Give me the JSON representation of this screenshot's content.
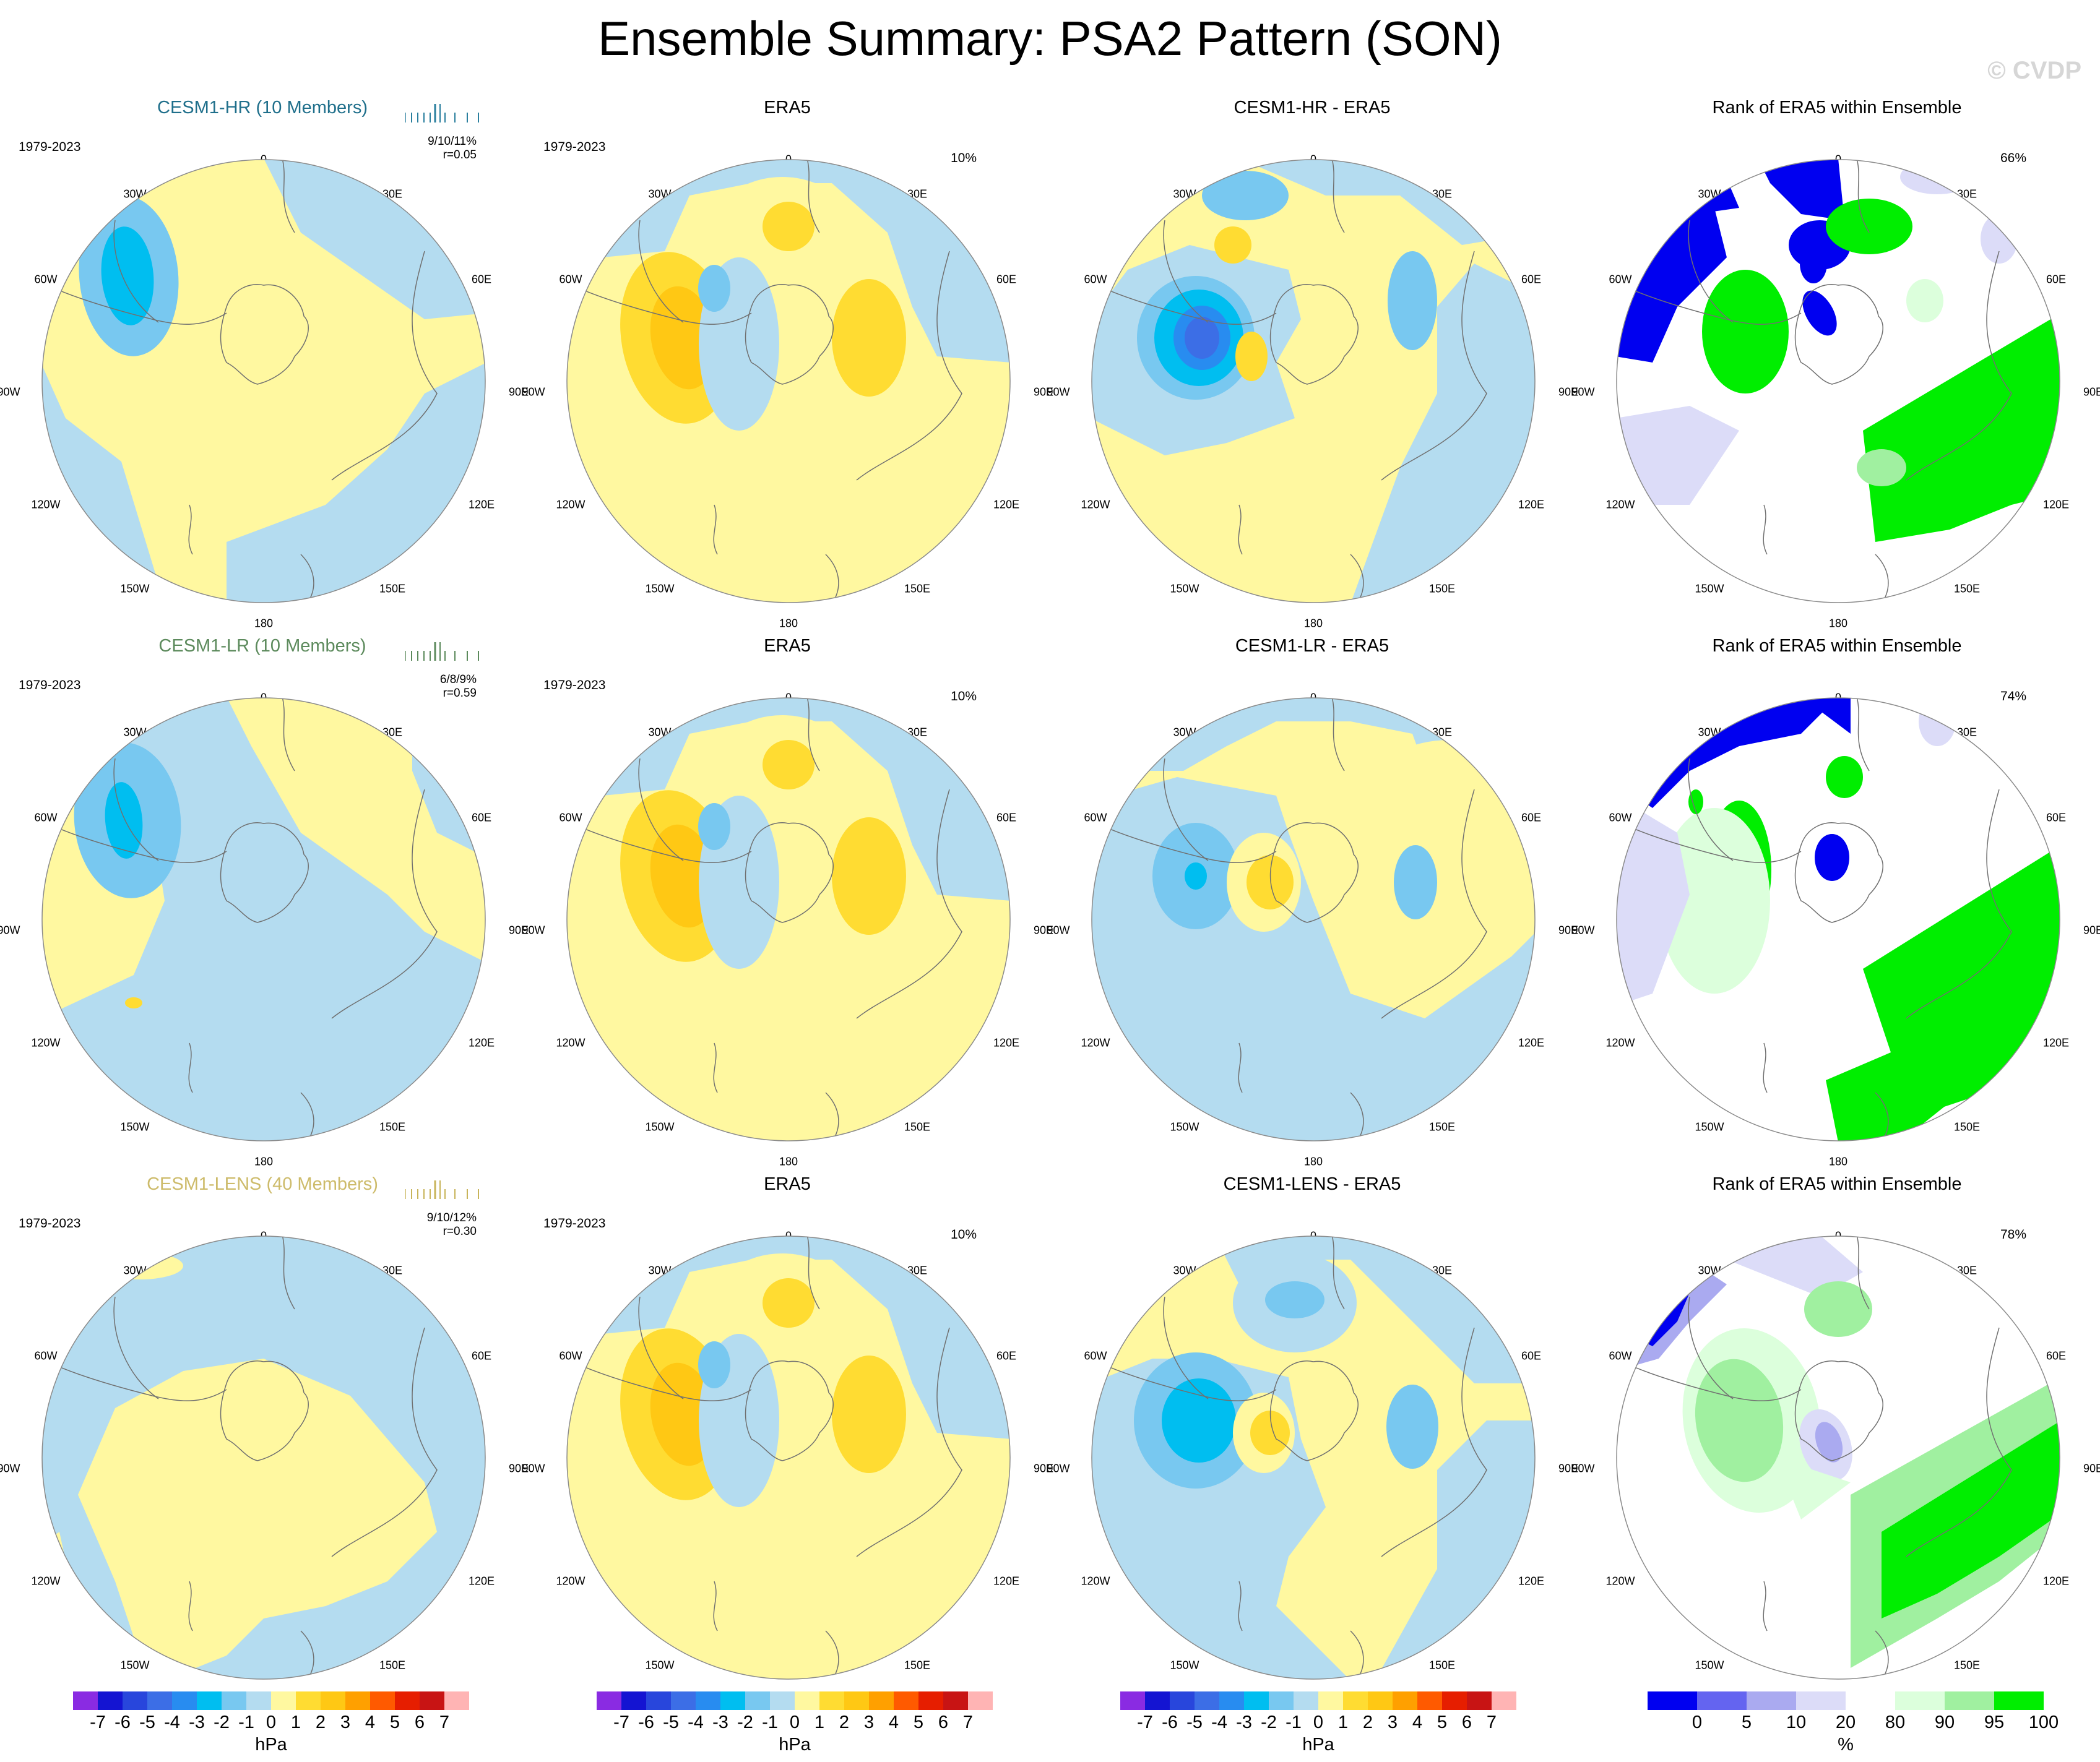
{
  "title": "Ensemble Summary: PSA2 Pattern (SON)",
  "watermark": "© CVDP",
  "period": "1979-2023",
  "lon_labels": [
    "0",
    "30E",
    "60E",
    "90E",
    "120E",
    "150E",
    "180",
    "150W",
    "120W",
    "90W",
    "60W",
    "30W"
  ],
  "rows": [
    {
      "model": {
        "title": "CESM1-HR (10 Members)",
        "title_color": "#1f6f8b",
        "tick_color": "#2a7f9e",
        "stats_line1": "9/10/11%",
        "stats_line2": "r=0.05"
      },
      "obs": {
        "title": "ERA5",
        "pct": "10%"
      },
      "diff": {
        "title": "CESM1-HR - ERA5"
      },
      "rank": {
        "title": "Rank of ERA5 within Ensemble",
        "pct": "66%"
      }
    },
    {
      "model": {
        "title": "CESM1-LR (10 Members)",
        "title_color": "#5c8a5c",
        "tick_color": "#5c8a5c",
        "stats_line1": "6/8/9%",
        "stats_line2": "r=0.59"
      },
      "obs": {
        "title": "ERA5",
        "pct": "10%"
      },
      "diff": {
        "title": "CESM1-LR - ERA5"
      },
      "rank": {
        "title": "Rank of ERA5 within Ensemble",
        "pct": "74%"
      }
    },
    {
      "model": {
        "title": "CESM1-LENS (40 Members)",
        "title_color": "#cdbb6a",
        "tick_color": "#c8b45a",
        "stats_line1": "9/10/12%",
        "stats_line2": "r=0.30"
      },
      "obs": {
        "title": "ERA5",
        "pct": "10%"
      },
      "diff": {
        "title": "CESM1-LENS - ERA5"
      },
      "rank": {
        "title": "Rank of ERA5 within Ensemble",
        "pct": "78%"
      }
    }
  ],
  "colorbar_hpa": {
    "labels": [
      "-7",
      "-6",
      "-5",
      "-4",
      "-3",
      "-2",
      "-1",
      "0",
      "1",
      "2",
      "3",
      "4",
      "5",
      "6",
      "7"
    ],
    "colors": [
      "#8a2be2",
      "#1414d2",
      "#2846dc",
      "#3c6ee6",
      "#288cf0",
      "#00bef0",
      "#78c8f0",
      "#b4dcf0",
      "#fff8a0",
      "#ffdc32",
      "#ffc814",
      "#ffa000",
      "#ff5a00",
      "#e61e00",
      "#c81414",
      "#ffb4b4"
    ],
    "unit": "hPa"
  },
  "colorbar_rank": {
    "labels": [
      "0",
      "5",
      "10",
      "20",
      "80",
      "90",
      "95",
      "100"
    ],
    "colors": [
      "#0000f0",
      "#6464f0",
      "#aaaaf0",
      "#dcdcf8",
      "#ffffff",
      "#dcffdc",
      "#a0f0a0",
      "#00ee00"
    ],
    "unit": "%"
  },
  "chart_data": [
    {
      "type": "polar-contour",
      "title": "Ensemble Summary: PSA2 Pattern (SON)",
      "projection": "south-polar-stereographic",
      "rows": [
        "CESM1-HR (10 Members)",
        "CESM1-LR (10 Members)",
        "CESM1-LENS (40 Members)"
      ],
      "columns": [
        "ensemble mean pattern",
        "ERA5",
        "model - ERA5",
        "Rank of ERA5 within Ensemble"
      ],
      "contour_levels_hPa": [
        -7,
        -6,
        -5,
        -4,
        -3,
        -2,
        -1,
        0,
        1,
        2,
        3,
        4,
        5,
        6,
        7
      ],
      "rank_levels_percent": [
        0,
        5,
        10,
        20,
        80,
        90,
        95,
        100
      ],
      "pattern_correlations": [
        0.05,
        0.59,
        0.3
      ],
      "ranks_percent": [
        66,
        74,
        78
      ],
      "era5_percent_variance": 10
    }
  ]
}
